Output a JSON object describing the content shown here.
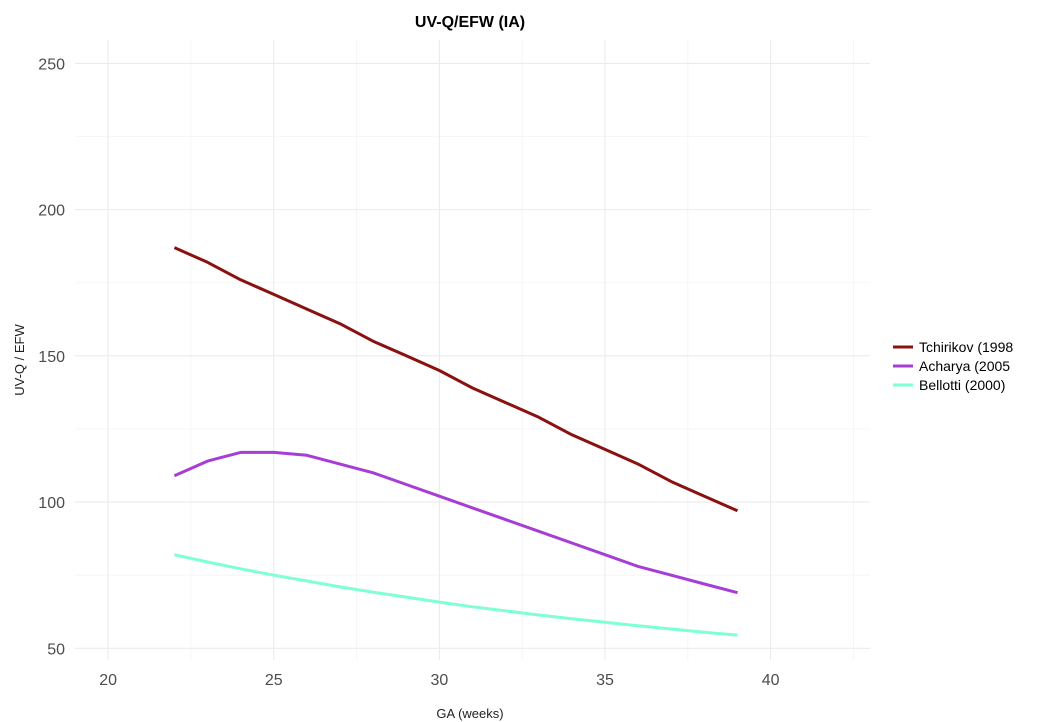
{
  "chart_data": {
    "type": "line",
    "title": "UV-Q/EFW (IA)",
    "xlabel": "GA (weeks)",
    "ylabel": "UV-Q / EFW",
    "xlim": [
      19,
      43
    ],
    "ylim": [
      46,
      258
    ],
    "x_ticks": [
      20,
      25,
      30,
      35,
      40
    ],
    "y_ticks": [
      50,
      100,
      150,
      200,
      250
    ],
    "grid": true,
    "legend_position": "right",
    "series": [
      {
        "name": "Tchirikov (1998",
        "color": "#8b1010",
        "x": [
          22,
          23,
          24,
          25,
          26,
          27,
          28,
          29,
          30,
          31,
          32,
          33,
          34,
          35,
          36,
          37,
          38,
          39
        ],
        "y": [
          187,
          182,
          176,
          171,
          166,
          161,
          155,
          150,
          145,
          139,
          134,
          129,
          123,
          118,
          113,
          107,
          102,
          97
        ]
      },
      {
        "name": "Acharya (2005",
        "color": "#a63ed6",
        "x": [
          22,
          23,
          24,
          25,
          26,
          27,
          28,
          29,
          30,
          31,
          32,
          33,
          34,
          35,
          36,
          37,
          38,
          39
        ],
        "y": [
          109,
          114,
          117,
          117,
          116,
          113,
          110,
          106,
          102,
          98,
          94,
          90,
          86,
          82,
          78,
          75,
          72,
          69
        ]
      },
      {
        "name": "Bellotti (2000)",
        "color": "#7fffd4",
        "x": [
          22,
          23,
          24,
          25,
          26,
          27,
          28,
          29,
          30,
          31,
          32,
          33,
          34,
          35,
          36,
          37,
          38,
          39
        ],
        "y": [
          82,
          79.5,
          77.2,
          75,
          73,
          71,
          69.2,
          67.5,
          65.8,
          64.2,
          62.8,
          61.4,
          60.1,
          58.9,
          57.7,
          56.6,
          55.5,
          54.5
        ]
      }
    ]
  }
}
